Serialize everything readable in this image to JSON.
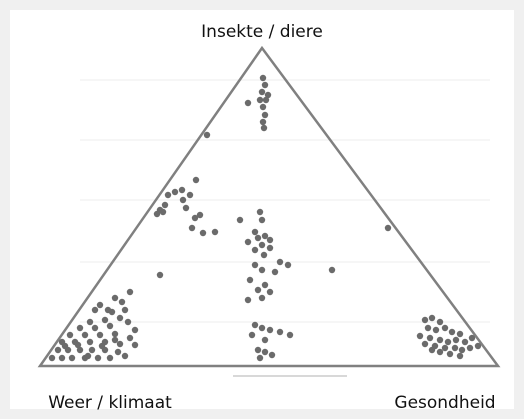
{
  "chart_data": {
    "type": "scatter",
    "corner_labels": {
      "top": "Insekte / diere",
      "left": "Weer / klimaat",
      "right": "Gesondheid"
    },
    "color": "#6b6b6b",
    "xlim": [
      0,
      458
    ],
    "ylim": [
      0,
      318
    ],
    "x": [
      223,
      225,
      222,
      228,
      220,
      226,
      223,
      208,
      225,
      223,
      224,
      167,
      135,
      142,
      128,
      150,
      120,
      125,
      117,
      123,
      146,
      155,
      160,
      152,
      163,
      175,
      156,
      143,
      220,
      222,
      200,
      215,
      218,
      225,
      230,
      208,
      222,
      215,
      230,
      224,
      240,
      215,
      248,
      222,
      235,
      210,
      225,
      218,
      230,
      222,
      208,
      215,
      222,
      230,
      240,
      212,
      250,
      225,
      218,
      225,
      232,
      220,
      348,
      292,
      120,
      385,
      392,
      400,
      388,
      396,
      405,
      412,
      420,
      380,
      390,
      400,
      408,
      416,
      425,
      432,
      385,
      395,
      405,
      415,
      422,
      430,
      438,
      400,
      410,
      420,
      392,
      90,
      75,
      60,
      55,
      68,
      85,
      80,
      65,
      50,
      40,
      55,
      70,
      88,
      30,
      45,
      60,
      75,
      90,
      22,
      35,
      50,
      65,
      80,
      95,
      18,
      28,
      40,
      52,
      65,
      78,
      12,
      22,
      32,
      45,
      58,
      70,
      85,
      95,
      82,
      72,
      38,
      48,
      62,
      75,
      25
    ],
    "values": [
      288,
      281,
      274,
      271,
      266,
      266,
      259,
      263,
      251,
      244,
      238,
      231,
      174,
      176,
      171,
      171,
      156,
      161,
      152,
      154,
      158,
      148,
      151,
      138,
      133,
      134,
      186,
      166,
      154,
      146,
      146,
      134,
      128,
      130,
      126,
      124,
      121,
      116,
      118,
      111,
      104,
      101,
      101,
      96,
      94,
      86,
      81,
      76,
      74,
      68,
      66,
      41,
      38,
      36,
      34,
      31,
      31,
      26,
      16,
      14,
      11,
      8,
      138,
      96,
      91,
      46,
      48,
      44,
      38,
      36,
      38,
      34,
      32,
      30,
      28,
      26,
      24,
      26,
      24,
      28,
      22,
      20,
      18,
      18,
      16,
      18,
      20,
      14,
      12,
      10,
      16,
      74,
      68,
      61,
      56,
      56,
      56,
      48,
      46,
      44,
      38,
      38,
      40,
      44,
      31,
      31,
      31,
      32,
      28,
      24,
      24,
      24,
      24,
      22,
      21,
      16,
      16,
      16,
      16,
      16,
      14,
      8,
      8,
      8,
      8,
      8,
      8,
      10,
      36,
      64,
      54,
      21,
      10,
      20,
      26,
      20
    ]
  }
}
